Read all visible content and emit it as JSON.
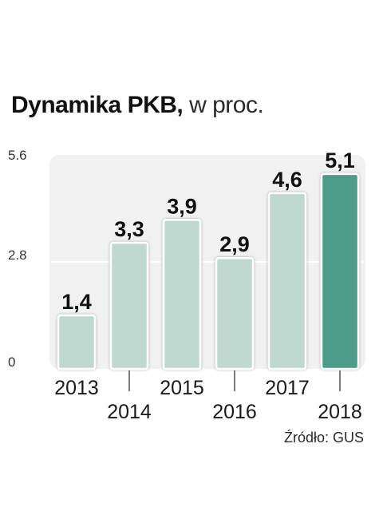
{
  "header": {
    "title": "Dynamika PKB,",
    "subtitle": "w proc."
  },
  "chart_data": {
    "type": "bar",
    "title": "Dynamika PKB, w proc.",
    "categories": [
      "2013",
      "2014",
      "2015",
      "2016",
      "2017",
      "2018"
    ],
    "values": [
      1.4,
      3.3,
      3.9,
      2.9,
      4.6,
      5.1
    ],
    "value_labels": [
      "1,4",
      "3,3",
      "3,9",
      "2,9",
      "4,6",
      "5,1"
    ],
    "y_ticks": [
      0,
      2.8,
      5.6
    ],
    "y_tick_labels": [
      "0",
      "2.8",
      "5.6"
    ],
    "ylim": [
      0,
      5.6
    ],
    "xlabel": "",
    "ylabel": "",
    "grid": true,
    "highlight_index": 5,
    "colors": {
      "bar": "#bfd8d0",
      "bar_highlight": "#4e9c8a",
      "plot_background": "#f1f1f1",
      "gridline": "#ffffff"
    }
  },
  "footer": {
    "source": "Źródło: GUS"
  }
}
